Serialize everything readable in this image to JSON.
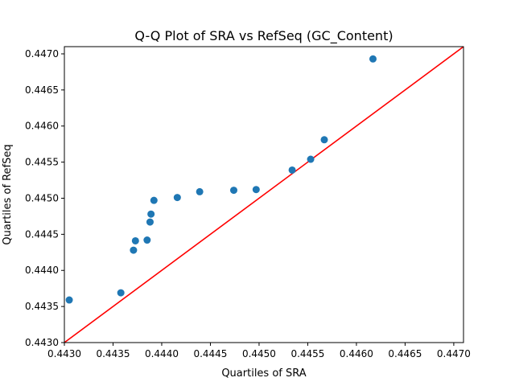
{
  "chart_data": {
    "type": "scatter",
    "title": "Q-Q Plot of SRA vs RefSeq (GC_Content)",
    "xlabel": "Quartiles of SRA",
    "ylabel": "Quartiles of RefSeq",
    "xlim": [
      0.443,
      0.4471
    ],
    "ylim": [
      0.443,
      0.4471
    ],
    "xticks": [
      "0.4430",
      "0.4435",
      "0.4440",
      "0.4445",
      "0.4450",
      "0.4455",
      "0.4460",
      "0.4465",
      "0.4470"
    ],
    "yticks": [
      "0.4430",
      "0.4435",
      "0.4440",
      "0.4445",
      "0.4450",
      "0.4455",
      "0.4460",
      "0.4465",
      "0.4470"
    ],
    "grid": false,
    "series": [
      {
        "color": "#1f77b4",
        "points": [
          {
            "x": 0.44305,
            "y": 0.44359
          },
          {
            "x": 0.44358,
            "y": 0.44369
          },
          {
            "x": 0.44371,
            "y": 0.44428
          },
          {
            "x": 0.44373,
            "y": 0.44441
          },
          {
            "x": 0.44385,
            "y": 0.44442
          },
          {
            "x": 0.44388,
            "y": 0.44467
          },
          {
            "x": 0.44389,
            "y": 0.44478
          },
          {
            "x": 0.44392,
            "y": 0.44497
          },
          {
            "x": 0.44416,
            "y": 0.44501
          },
          {
            "x": 0.44439,
            "y": 0.44509
          },
          {
            "x": 0.44474,
            "y": 0.44511
          },
          {
            "x": 0.44497,
            "y": 0.44512
          },
          {
            "x": 0.44534,
            "y": 0.44539
          },
          {
            "x": 0.44553,
            "y": 0.44554
          },
          {
            "x": 0.44567,
            "y": 0.44581
          },
          {
            "x": 0.44617,
            "y": 0.44693
          }
        ]
      }
    ],
    "reference_line": {
      "color": "#ff0000",
      "x": [
        0.443,
        0.4471
      ],
      "y": [
        0.443,
        0.4471
      ]
    }
  }
}
